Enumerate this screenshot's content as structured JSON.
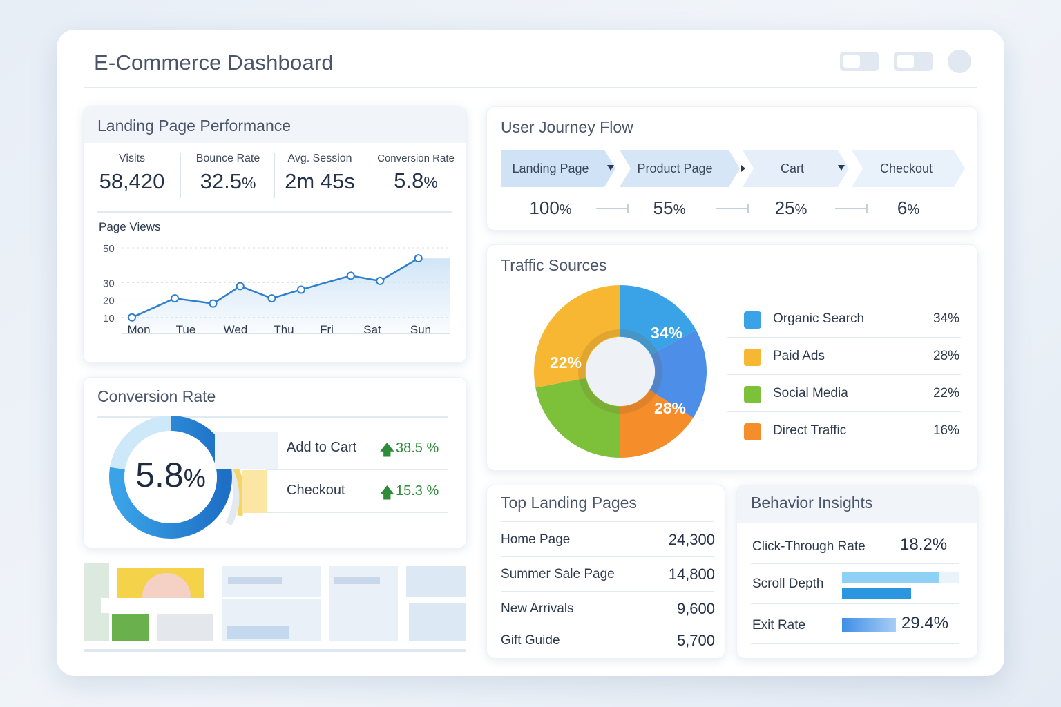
{
  "header": {
    "title": "E-Commerce Dashboard"
  },
  "landing_performance": {
    "title": "Landing Page Performance",
    "stats": [
      {
        "label": "Visits",
        "value": "58,420",
        "unit": ""
      },
      {
        "label": "Bounce Rate",
        "value": "32.5",
        "unit": "%"
      },
      {
        "label": "Avg. Session",
        "value": "2m 45s",
        "unit": ""
      },
      {
        "label": "Conversion Rate",
        "value": "5.8",
        "unit": "%"
      }
    ],
    "chart_label": "Page Views"
  },
  "chart_data": {
    "type": "line",
    "title": "Page Views",
    "categories": [
      "Mon",
      "Tue",
      "Wed",
      "Thu",
      "Fri",
      "Sat",
      "Sun"
    ],
    "y_ticks": [
      10,
      20,
      30,
      50
    ],
    "x": [
      0,
      0.95,
      1.8,
      2.4,
      3.1,
      3.75,
      4.85,
      5.5,
      6.35
    ],
    "values": [
      10,
      21,
      18,
      28,
      21,
      26,
      34,
      31,
      44
    ],
    "ylim": [
      0,
      50
    ],
    "grid": true,
    "colors": {
      "line": "#2f7fcf",
      "fill": "#cfe4f6"
    }
  },
  "journey": {
    "title": "User Journey Flow",
    "steps": [
      {
        "label": "Landing Page",
        "pct": "100",
        "unit": "%"
      },
      {
        "label": "Product Page",
        "pct": "55",
        "unit": "%"
      },
      {
        "label": "Cart",
        "pct": "25",
        "unit": "%"
      },
      {
        "label": "Checkout",
        "pct": "6",
        "unit": "%"
      }
    ]
  },
  "traffic": {
    "title": "Traffic Sources",
    "slices": [
      {
        "name": "Organic Search",
        "pct": "34%",
        "value": 34,
        "color": "#3aa3e8"
      },
      {
        "name": "Paid Ads",
        "pct": "28%",
        "value": 28,
        "color": "#f7b733"
      },
      {
        "name": "Social Media",
        "pct": "22%",
        "value": 22,
        "color": "#7dc13b"
      },
      {
        "name": "Direct Traffic",
        "pct": "16%",
        "value": 16,
        "color": "#f58d2a"
      }
    ],
    "donut_labels": [
      "34%",
      "28%",
      "22%"
    ]
  },
  "conversion": {
    "title": "Conversion Rate",
    "value": "5.8",
    "unit": "%",
    "rows": [
      {
        "name": "Add to Cart",
        "pct": "38.5 %"
      },
      {
        "name": "Checkout",
        "pct": "15.3 %"
      }
    ]
  },
  "top_pages": {
    "title": "Top Landing Pages",
    "rows": [
      {
        "name": "Home Page",
        "value": "24,300"
      },
      {
        "name": "Summer Sale Page",
        "value": "14,800"
      },
      {
        "name": "New Arrivals",
        "value": "9,600"
      },
      {
        "name": "Gift Guide",
        "value": "5,700"
      }
    ]
  },
  "behavior": {
    "title": "Behavior Insights",
    "rows": [
      {
        "name": "Click-Through Rate",
        "value": "18.2%"
      },
      {
        "name": "Scroll Depth",
        "value": ""
      },
      {
        "name": "Exit Rate",
        "value": "29.4%"
      }
    ]
  }
}
